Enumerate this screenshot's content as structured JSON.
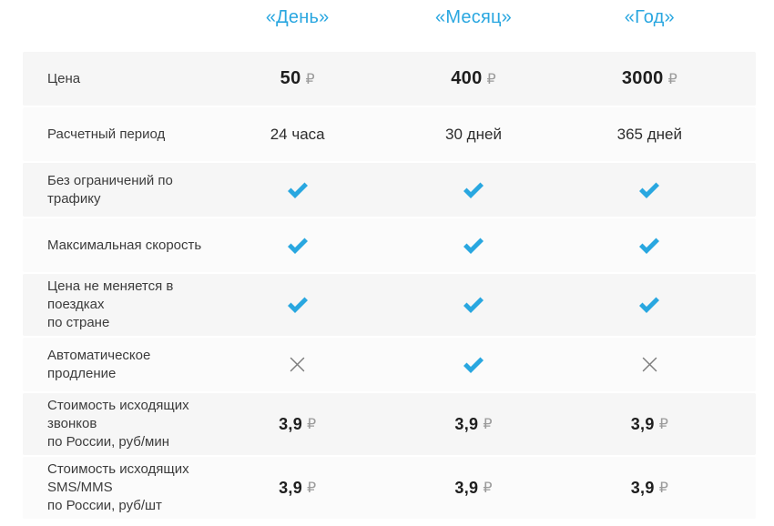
{
  "colors": {
    "accent_blue": "#2aa7e0",
    "check": "#29a7e0",
    "cross": "#7d7d7d",
    "row_shade_a": "#f6f6f6",
    "row_shade_b": "#fbfbfb",
    "price_text": "#1e1e1e",
    "currency_text": "#9b9b9b",
    "label_text": "#3c3c3c"
  },
  "columns": [
    "«День»",
    "«Месяц»",
    "«Год»"
  ],
  "rows": [
    {
      "label_lines": [
        "Цена"
      ],
      "cells": [
        {
          "type": "price",
          "amount": "50",
          "currency": "₽"
        },
        {
          "type": "price",
          "amount": "400",
          "currency": "₽"
        },
        {
          "type": "price",
          "amount": "3000",
          "currency": "₽"
        }
      ]
    },
    {
      "label_lines": [
        "Расчетный период"
      ],
      "cells": [
        {
          "type": "text",
          "text": "24 часа"
        },
        {
          "type": "text",
          "text": "30 дней"
        },
        {
          "type": "text",
          "text": "365 дней"
        }
      ]
    },
    {
      "label_lines": [
        "Без ограничений по трафику"
      ],
      "cells": [
        {
          "type": "check"
        },
        {
          "type": "check"
        },
        {
          "type": "check"
        }
      ]
    },
    {
      "label_lines": [
        "Максимальная скорость"
      ],
      "cells": [
        {
          "type": "check"
        },
        {
          "type": "check"
        },
        {
          "type": "check"
        }
      ]
    },
    {
      "label_lines": [
        "Цена не меняется в поездках",
        "по стране"
      ],
      "cells": [
        {
          "type": "check"
        },
        {
          "type": "check"
        },
        {
          "type": "check"
        }
      ]
    },
    {
      "label_lines": [
        "Автоматическое продление"
      ],
      "cells": [
        {
          "type": "cross"
        },
        {
          "type": "check"
        },
        {
          "type": "cross"
        }
      ]
    },
    {
      "label_lines": [
        "Стоимость исходящих звонков",
        "по России, руб/мин"
      ],
      "cells": [
        {
          "type": "price_small",
          "amount": "3,9",
          "currency": "₽"
        },
        {
          "type": "price_small",
          "amount": "3,9",
          "currency": "₽"
        },
        {
          "type": "price_small",
          "amount": "3,9",
          "currency": "₽"
        }
      ]
    },
    {
      "label_lines": [
        "Стоимость исходящих SMS/MMS",
        "по России, руб/шт"
      ],
      "cells": [
        {
          "type": "price_small",
          "amount": "3,9",
          "currency": "₽"
        },
        {
          "type": "price_small",
          "amount": "3,9",
          "currency": "₽"
        },
        {
          "type": "price_small",
          "amount": "3,9",
          "currency": "₽"
        }
      ]
    }
  ]
}
